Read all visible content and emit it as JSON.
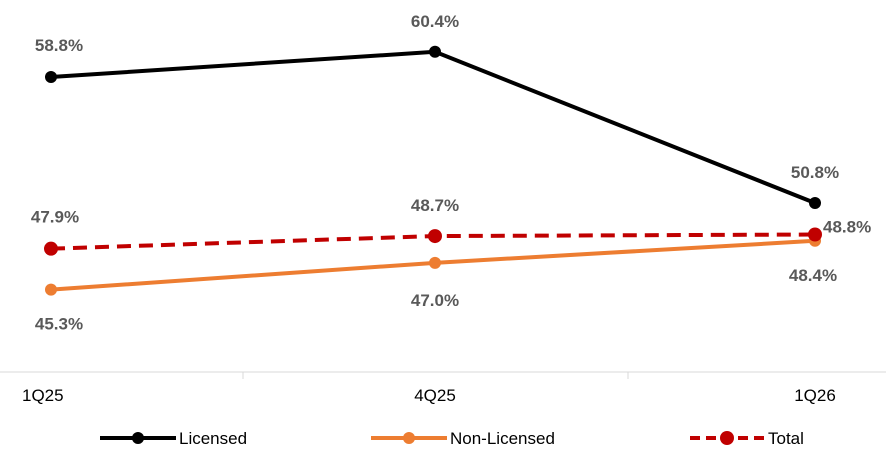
{
  "chart_data": {
    "type": "line",
    "categories": [
      "1Q25",
      "4Q25",
      "1Q26"
    ],
    "series": [
      {
        "name": "Licensed",
        "values": [
          58.8,
          60.4,
          50.8
        ],
        "labels": [
          "58.8%",
          "60.4%",
          "50.8%"
        ],
        "color": "#000000",
        "dashed": false
      },
      {
        "name": "Non-Licensed",
        "values": [
          45.3,
          47.0,
          48.4
        ],
        "labels": [
          "45.3%",
          "47.0%",
          "48.4%"
        ],
        "color": "#ED7D31",
        "dashed": false
      },
      {
        "name": "Total",
        "values": [
          47.9,
          48.7,
          48.8
        ],
        "labels": [
          "47.9%",
          "48.7%",
          "48.8%"
        ],
        "color": "#C00000",
        "dashed": true
      }
    ],
    "legend": "bottom",
    "grid": false
  }
}
